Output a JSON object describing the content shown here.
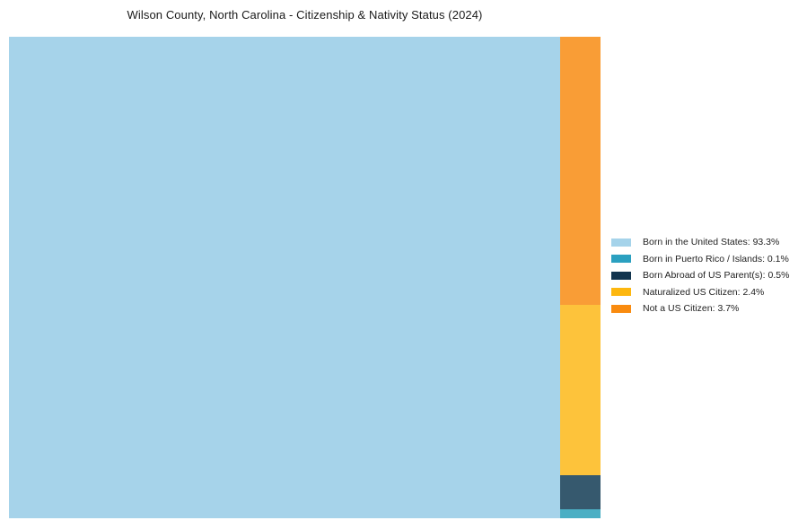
{
  "title": "Wilson County, North Carolina - Citizenship & Nativity Status (2024)",
  "chart_data": {
    "type": "treemap",
    "title": "Wilson County, North Carolina - Citizenship & Nativity Status (2024)",
    "unit": "percent",
    "legend_position": "right",
    "segments": [
      {
        "label": "Born in the United States",
        "value": 93.3,
        "chart_color": "#A6D3EA",
        "legend_color": "#A5D3EA"
      },
      {
        "label": "Born in Puerto Rico / Islands",
        "value": 0.1,
        "chart_color": "#4BAFC4",
        "legend_color": "#2BA0C0"
      },
      {
        "label": "Born Abroad of US Parent(s)",
        "value": 0.5,
        "chart_color": "#36596E",
        "legend_color": "#12344E"
      },
      {
        "label": "Naturalized US Citizen",
        "value": 2.4,
        "chart_color": "#FDC33B",
        "legend_color": "#FDB70F"
      },
      {
        "label": "Not a US Citizen",
        "value": 3.7,
        "chart_color": "#F99D36",
        "legend_color": "#F98B0F"
      }
    ],
    "legend": [
      {
        "label": "Born in the United States: 93.3%",
        "color": "#A5D3EA"
      },
      {
        "label": "Born in Puerto Rico / Islands: 0.1%",
        "color": "#2BA0C0"
      },
      {
        "label": "Born Abroad of US Parent(s): 0.5%",
        "color": "#12344E"
      },
      {
        "label": "Naturalized US Citizen: 2.4%",
        "color": "#FDB70F"
      },
      {
        "label": "Not a US Citizen: 3.7%",
        "color": "#F98B0F"
      }
    ]
  }
}
